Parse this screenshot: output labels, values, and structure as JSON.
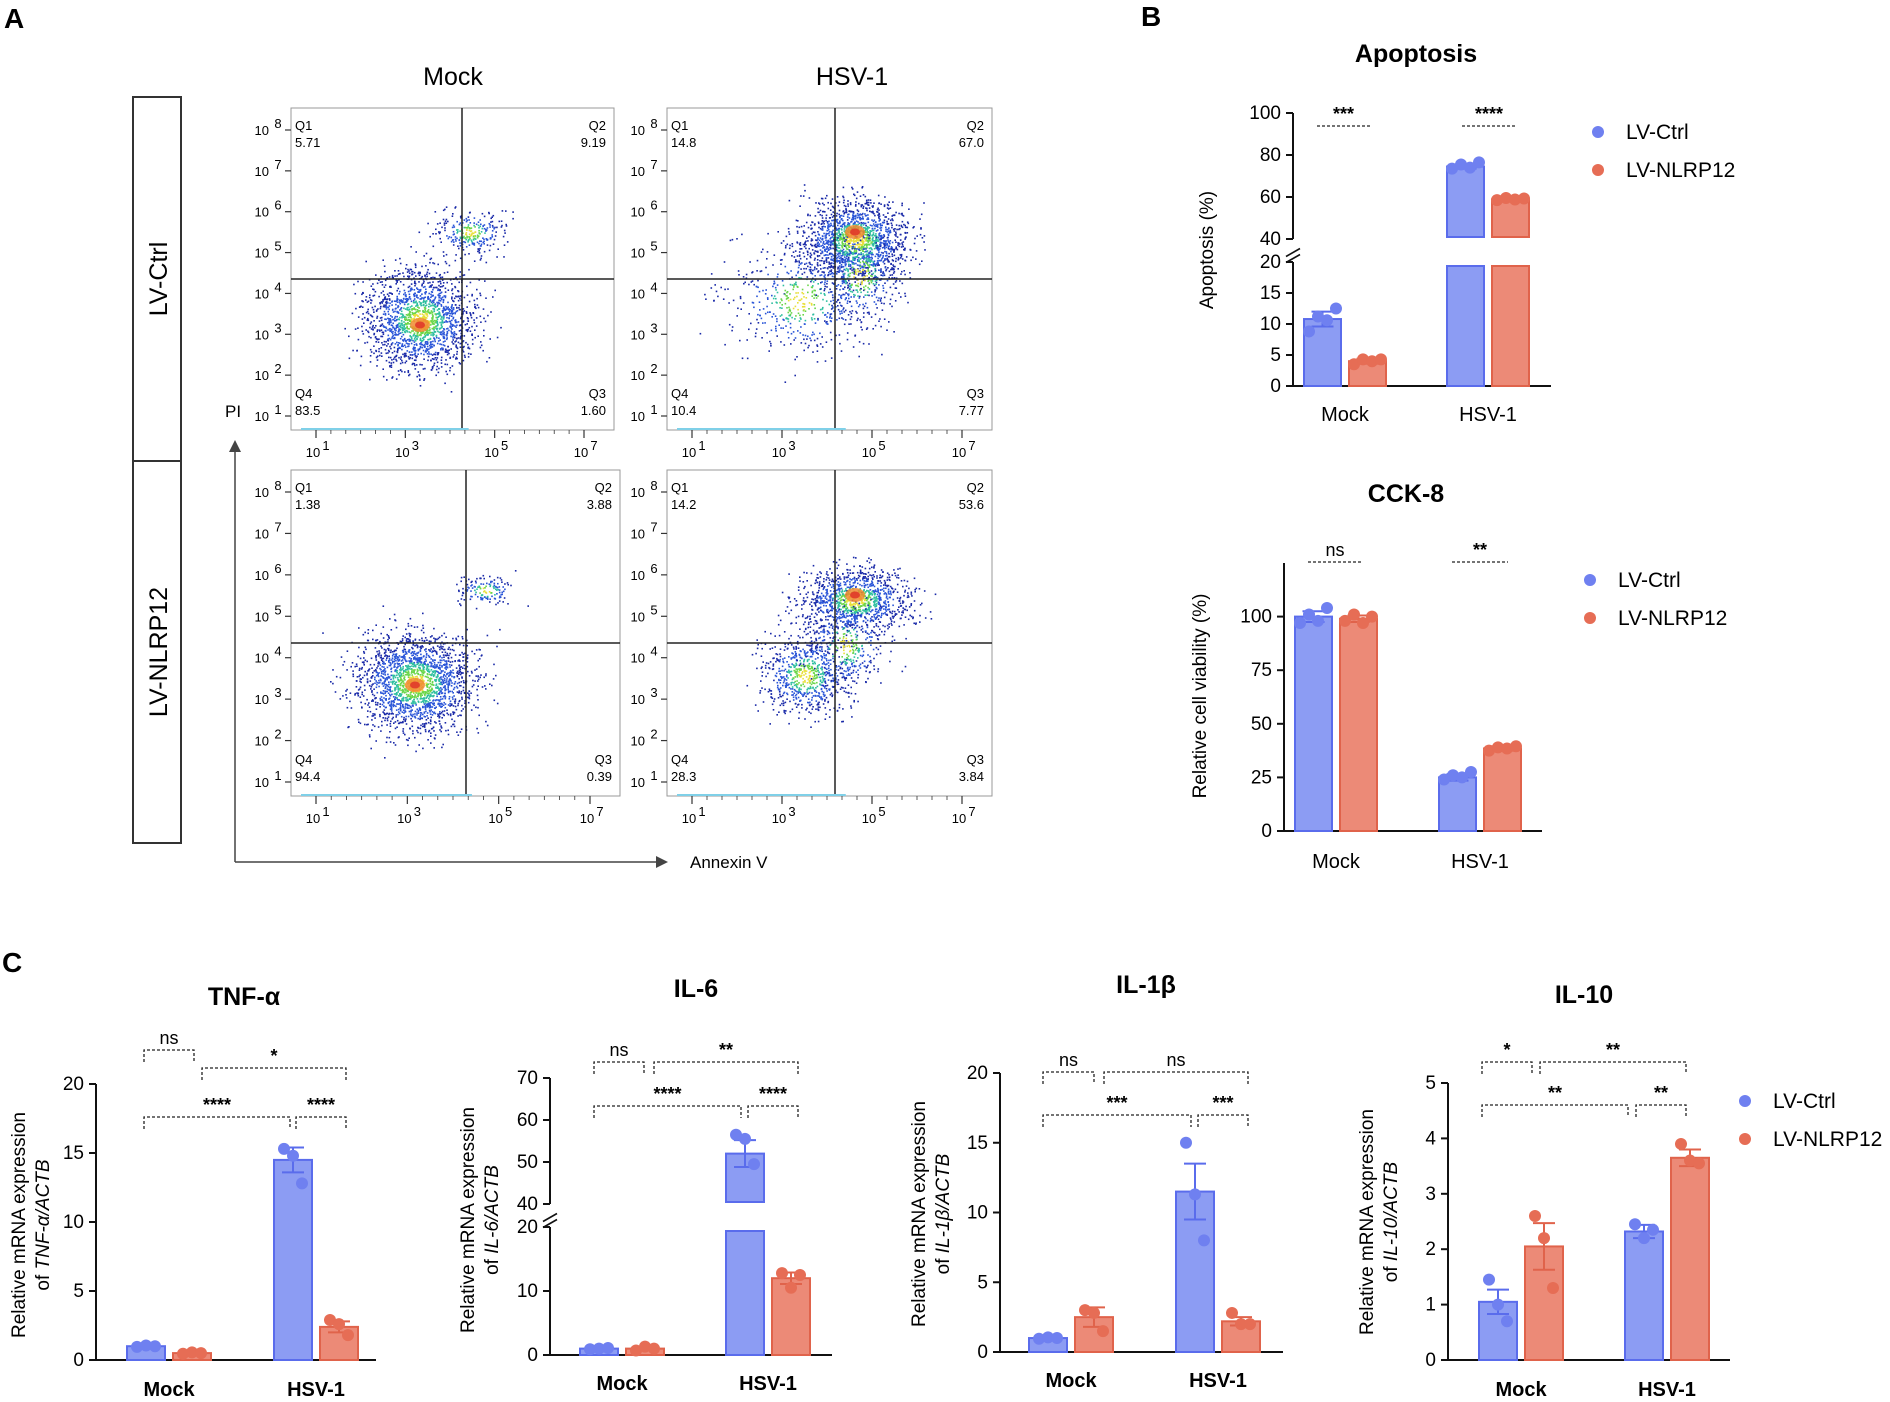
{
  "colors": {
    "ctrl": "#8c9cf3",
    "ctrl_edge": "#5a6cec",
    "nlrp": "#ec8a77",
    "nlrp_edge": "#e0634b",
    "dot_ctrl": "#6f80f0",
    "dot_nlrp": "#e66d55"
  },
  "panel_labels": [
    "A",
    "B",
    "C"
  ],
  "flow": {
    "col_titles": [
      "Mock",
      "HSV-1"
    ],
    "row_titles": [
      "LV-Ctrl",
      "LV-NLRP12"
    ],
    "y_axis_label": "PI",
    "x_axis_label": "Annexin V",
    "y_ticks": [
      "10",
      "10",
      "10",
      "10",
      "10",
      "10",
      "10",
      "10"
    ],
    "y_tick_exps": [
      "1",
      "2",
      "3",
      "4",
      "5",
      "6",
      "7",
      "8"
    ],
    "x_ticks": [
      "10",
      "10",
      "10",
      "10"
    ],
    "x_tick_exps": [
      "1",
      "3",
      "5",
      "7"
    ],
    "quadrant_names": [
      "Q1",
      "Q2",
      "Q3",
      "Q4"
    ],
    "plots": [
      {
        "name": "ctrl-mock",
        "q1": "5.71",
        "q2": "9.19",
        "q3": "1.60",
        "q4": "83.5"
      },
      {
        "name": "ctrl-hsv",
        "q1": "14.8",
        "q2": "67.0",
        "q3": "7.77",
        "q4": "10.4"
      },
      {
        "name": "nlrp-mock",
        "q1": "1.38",
        "q2": "3.88",
        "q3": "0.39",
        "q4": "94.4"
      },
      {
        "name": "nlrp-hsv",
        "q1": "14.2",
        "q2": "53.6",
        "q3": "3.84",
        "q4": "28.3"
      }
    ]
  },
  "chart_data": [
    {
      "id": "apoptosis",
      "type": "bar",
      "title": "Apoptosis",
      "ylabel": "Apoptosis (%)",
      "xlabel": "",
      "categories": [
        "Mock",
        "HSV-1"
      ],
      "y_segments": [
        {
          "range": [
            0,
            20
          ],
          "ticks": [
            "0",
            "5",
            "10",
            "15",
            "20"
          ]
        },
        {
          "range": [
            40,
            100
          ],
          "ticks": [
            "40",
            "60",
            "80",
            "100"
          ]
        }
      ],
      "series": [
        {
          "name": "LV-Ctrl",
          "values": [
            10.8,
            74.5
          ],
          "errors": [
            1.2,
            1.0
          ],
          "points": [
            [
              8.8,
              11.2,
              10.6,
              12.5
            ],
            [
              73.5,
              75.5,
              74.0,
              76.5
            ]
          ]
        },
        {
          "name": "LV-NLRP12",
          "values": [
            4.0,
            58.8
          ],
          "errors": [
            0.4,
            0.5
          ],
          "points": [
            [
              3.5,
              4.3,
              4.0,
              4.3
            ],
            [
              58.5,
              59.5,
              58.8,
              59.3
            ]
          ]
        }
      ],
      "significance": [
        "***",
        "****"
      ],
      "legend": [
        "LV-Ctrl",
        "LV-NLRP12"
      ]
    },
    {
      "id": "cck8",
      "type": "bar",
      "title": "CCK-8",
      "ylabel": "Relative cell viability (%)",
      "xlabel": "",
      "categories": [
        "Mock",
        "HSV-1"
      ],
      "ylim": [
        0,
        125
      ],
      "ticks": [
        "0",
        "25",
        "50",
        "75",
        "100"
      ],
      "series": [
        {
          "name": "LV-Ctrl",
          "values": [
            100,
            25
          ],
          "errors": [
            2.5,
            1.5
          ],
          "points": [
            [
              97,
              101,
              98,
              104
            ],
            [
              24,
              26,
              25,
              27.5
            ]
          ]
        },
        {
          "name": "LV-NLRP12",
          "values": [
            99,
            38.5
          ],
          "errors": [
            1.5,
            1.0
          ],
          "points": [
            [
              98,
              101,
              97,
              100
            ],
            [
              37.5,
              39,
              38.5,
              39.5
            ]
          ]
        }
      ],
      "significance": [
        "ns",
        "**"
      ],
      "legend": [
        "LV-Ctrl",
        "LV-NLRP12"
      ]
    },
    {
      "id": "tnf",
      "type": "bar",
      "title": "TNF-α",
      "ylabel_lines": [
        "Relative mRNA expression",
        "of ",
        "TNF-α/ACTB"
      ],
      "categories": [
        "Mock",
        "HSV-1"
      ],
      "ylim": [
        0,
        20
      ],
      "ticks": [
        "0",
        "5",
        "10",
        "15",
        "20"
      ],
      "series": [
        {
          "name": "LV-Ctrl",
          "values": [
            1.0,
            14.5
          ],
          "errors": [
            0.1,
            0.9
          ],
          "points": [
            [
              0.95,
              1.05,
              1.0
            ],
            [
              15.3,
              14.8,
              12.8
            ]
          ]
        },
        {
          "name": "LV-NLRP12",
          "values": [
            0.5,
            2.4
          ],
          "errors": [
            0.1,
            0.4
          ],
          "points": [
            [
              0.45,
              0.55,
              0.5
            ],
            [
              2.9,
              2.6,
              1.8
            ]
          ]
        }
      ],
      "brackets": [
        "ns",
        "*",
        "****",
        "****"
      ]
    },
    {
      "id": "il6",
      "type": "bar",
      "title": "IL-6",
      "ylabel_lines": [
        "Relative mRNA expression",
        "of ",
        "IL-6/ACTB"
      ],
      "categories": [
        "Mock",
        "HSV-1"
      ],
      "y_segments": [
        {
          "range": [
            0,
            20
          ],
          "ticks": [
            "0",
            "10",
            "20"
          ]
        },
        {
          "range": [
            40,
            70
          ],
          "ticks": [
            "40",
            "50",
            "60",
            "70"
          ]
        }
      ],
      "series": [
        {
          "name": "LV-Ctrl",
          "values": [
            1.0,
            52.0
          ],
          "errors": [
            0.1,
            3.2
          ],
          "points": [
            [
              0.9,
              1.0,
              1.1
            ],
            [
              56.5,
              55.5,
              49.5
            ]
          ]
        },
        {
          "name": "LV-NLRP12",
          "values": [
            1.0,
            12.0
          ],
          "errors": [
            0.2,
            0.9
          ],
          "points": [
            [
              0.7,
              1.3,
              1.0
            ],
            [
              12.8,
              10.5,
              12.5
            ]
          ]
        }
      ],
      "brackets": [
        "ns",
        "**",
        "****",
        "****"
      ]
    },
    {
      "id": "il1b",
      "type": "bar",
      "title": "IL-1β",
      "ylabel_lines": [
        "Relative mRNA expression",
        "of ",
        "IL-1β/ACTB"
      ],
      "categories": [
        "Mock",
        "HSV-1"
      ],
      "ylim": [
        0,
        20
      ],
      "ticks": [
        "0",
        "5",
        "10",
        "15",
        "20"
      ],
      "series": [
        {
          "name": "LV-Ctrl",
          "values": [
            1.0,
            11.5
          ],
          "errors": [
            0.1,
            2.0
          ],
          "points": [
            [
              0.95,
              1.05,
              1.0
            ],
            [
              15.0,
              11.3,
              8.0
            ]
          ]
        },
        {
          "name": "LV-NLRP12",
          "values": [
            2.5,
            2.2
          ],
          "errors": [
            0.7,
            0.3
          ],
          "points": [
            [
              3.0,
              2.8,
              1.5
            ],
            [
              2.8,
              2.0,
              2.0
            ]
          ]
        }
      ],
      "brackets": [
        "ns",
        "ns",
        "***",
        "***"
      ]
    },
    {
      "id": "il10",
      "type": "bar",
      "title": "IL-10",
      "ylabel_lines": [
        "Relative mRNA expression",
        "of ",
        "IL-10/ACTB"
      ],
      "categories": [
        "Mock",
        "HSV-1"
      ],
      "ylim": [
        0,
        5
      ],
      "ticks": [
        "0",
        "1",
        "2",
        "3",
        "4",
        "5"
      ],
      "series": [
        {
          "name": "LV-Ctrl",
          "values": [
            1.05,
            2.32
          ],
          "errors": [
            0.22,
            0.12
          ],
          "points": [
            [
              1.45,
              1.0,
              0.7
            ],
            [
              2.45,
              2.2,
              2.35
            ]
          ]
        },
        {
          "name": "LV-NLRP12",
          "values": [
            2.05,
            3.65
          ],
          "errors": [
            0.42,
            0.15
          ],
          "points": [
            [
              2.6,
              2.2,
              1.3
            ],
            [
              3.9,
              3.6,
              3.55
            ]
          ]
        }
      ],
      "brackets": [
        "*",
        "**",
        "**",
        "**"
      ],
      "legend": [
        "LV-Ctrl",
        "LV-NLRP12"
      ]
    }
  ]
}
